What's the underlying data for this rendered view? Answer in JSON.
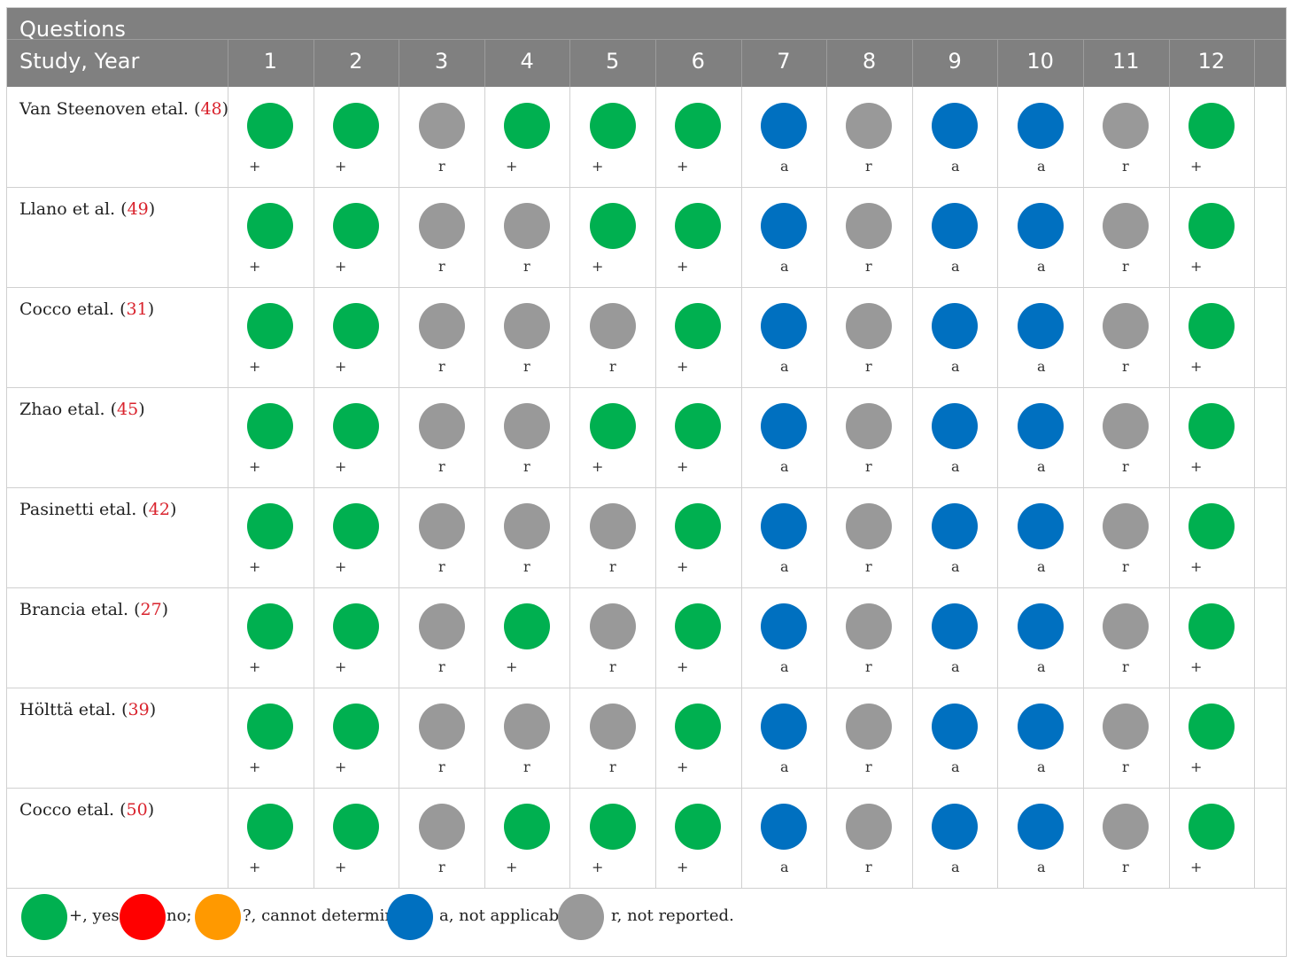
{
  "header": {
    "questions_label": "Questions",
    "study_label": "Study, Year",
    "question_numbers": [
      "1",
      "2",
      "3",
      "4",
      "5",
      "6",
      "7",
      "8",
      "9",
      "10",
      "11",
      "12"
    ]
  },
  "colors": {
    "yes": "#00b050",
    "no": "#ff0000",
    "cannot_determine": "#ff9900",
    "not_applicable": "#0070c0",
    "not_reported": "#999999"
  },
  "rows": [
    {
      "study": "Van Steenoven etal.",
      "ref": "48",
      "codes": [
        "+",
        "+",
        "r",
        "+",
        "+",
        "+",
        "a",
        "r",
        "a",
        "a",
        "r",
        "+"
      ]
    },
    {
      "study": "Llano et al.",
      "ref": "49",
      "codes": [
        "+",
        "+",
        "r",
        "r",
        "+",
        "+",
        "a",
        "r",
        "a",
        "a",
        "r",
        "+"
      ]
    },
    {
      "study": "Cocco etal.",
      "ref": "31",
      "codes": [
        "+",
        "+",
        "r",
        "r",
        "r",
        "+",
        "a",
        "r",
        "a",
        "a",
        "r",
        "+"
      ]
    },
    {
      "study": "Zhao etal.",
      "ref": "45",
      "codes": [
        "+",
        "+",
        "r",
        "r",
        "+",
        "+",
        "a",
        "r",
        "a",
        "a",
        "r",
        "+"
      ]
    },
    {
      "study": "Pasinetti etal.",
      "ref": "42",
      "codes": [
        "+",
        "+",
        "r",
        "r",
        "r",
        "+",
        "a",
        "r",
        "a",
        "a",
        "r",
        "+"
      ]
    },
    {
      "study": "Brancia etal.",
      "ref": "27",
      "codes": [
        "+",
        "+",
        "r",
        "+",
        "r",
        "+",
        "a",
        "r",
        "a",
        "a",
        "r",
        "+"
      ]
    },
    {
      "study": "Hölttä etal.",
      "ref": "39",
      "codes": [
        "+",
        "+",
        "r",
        "r",
        "r",
        "+",
        "a",
        "r",
        "a",
        "a",
        "r",
        "+"
      ]
    },
    {
      "study": "Cocco etal.",
      "ref": "50",
      "codes": [
        "+",
        "+",
        "r",
        "+",
        "+",
        "+",
        "a",
        "r",
        "a",
        "a",
        "r",
        "+"
      ]
    }
  ],
  "legend": [
    {
      "key": "yes",
      "text": "+, yes;"
    },
    {
      "key": "no",
      "text": "no;"
    },
    {
      "key": "cannot_determine",
      "text": "?, cannot determine;"
    },
    {
      "key": "not_applicable",
      "text": "a, not applicable;"
    },
    {
      "key": "not_reported",
      "text": "r, not reported."
    }
  ]
}
